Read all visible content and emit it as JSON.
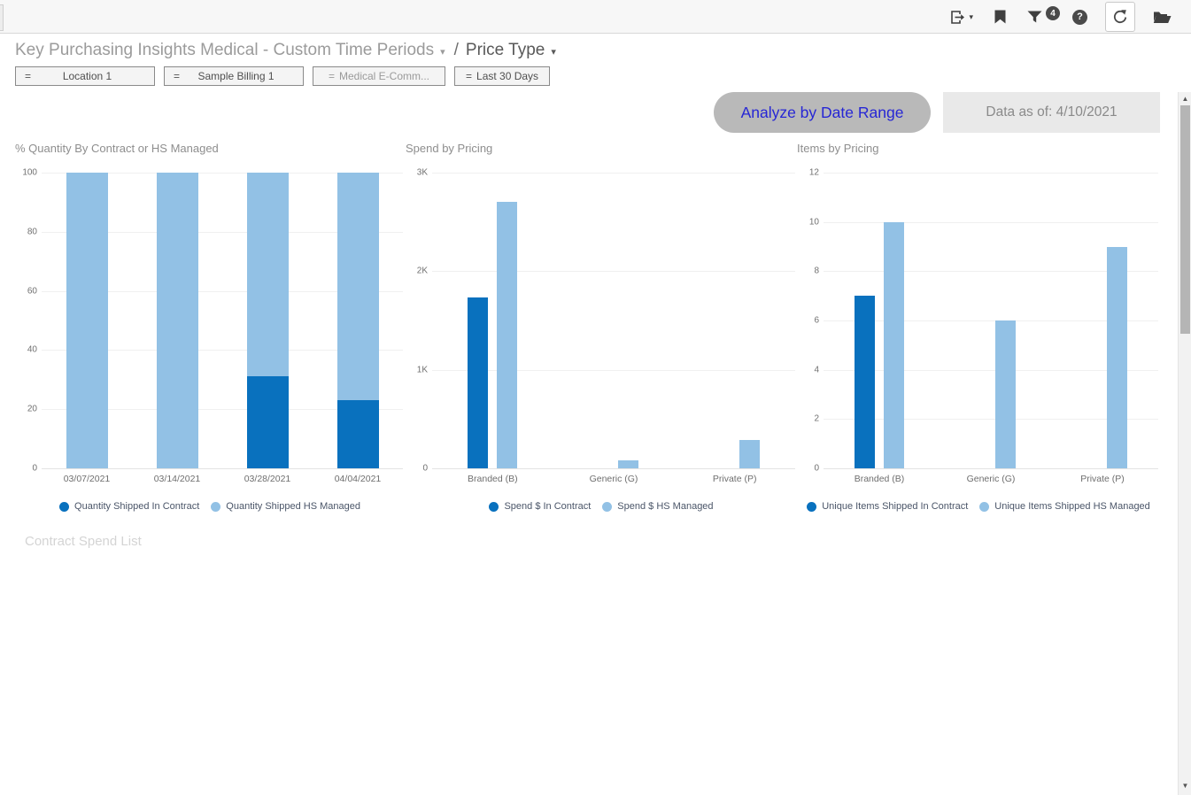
{
  "toolbar": {
    "filter_badge_count": "4",
    "icons": [
      "export",
      "bookmark",
      "filter",
      "help",
      "refresh",
      "folder"
    ]
  },
  "header": {
    "title": "Key Purchasing Insights Medical - Custom Time Periods",
    "separator": "/",
    "subtitle": "Price Type"
  },
  "filters": [
    {
      "operator": "=",
      "label": "Location 1"
    },
    {
      "operator": "=",
      "label": "Sample Billing 1"
    },
    {
      "operator": "=",
      "label": "Medical E-Comm..."
    },
    {
      "operator": "=",
      "label": "Last 30 Days"
    }
  ],
  "actions": {
    "analyze_button_label": "Analyze by Date Range",
    "data_as_of_label": "Data as of: 4/10/2021"
  },
  "sections": {
    "contract_spend_list_title": "Contract Spend List"
  },
  "colors": {
    "series_in_contract": "#0971BE",
    "series_hs_managed": "#92C1E5",
    "accent_blue": "#2626D5"
  },
  "chart_data": [
    {
      "type": "bar",
      "stacked": true,
      "title": "% Quantity By Contract or HS Managed",
      "categories": [
        "03/07/2021",
        "03/14/2021",
        "03/28/2021",
        "04/04/2021"
      ],
      "series": [
        {
          "name": "Quantity Shipped In Contract",
          "color": "#0971BE",
          "values": [
            0,
            0,
            31,
            23
          ]
        },
        {
          "name": "Quantity Shipped HS Managed",
          "color": "#92C1E5",
          "values": [
            100,
            100,
            69,
            77
          ]
        }
      ],
      "ylim": [
        0,
        100
      ],
      "yticks": [
        0,
        20,
        40,
        60,
        80,
        100
      ],
      "ytick_labels": [
        "0",
        "20",
        "40",
        "60",
        "80",
        "100"
      ],
      "grid": true,
      "legend_position": "bottom"
    },
    {
      "type": "bar",
      "stacked": false,
      "title": "Spend by Pricing",
      "categories": [
        "Branded (B)",
        "Generic (G)",
        "Private (P)"
      ],
      "series": [
        {
          "name": "Spend $ In Contract",
          "color": "#0971BE",
          "values": [
            1730,
            0,
            0
          ]
        },
        {
          "name": "Spend $ HS Managed",
          "color": "#92C1E5",
          "values": [
            2700,
            80,
            290
          ]
        }
      ],
      "ylim": [
        0,
        3000
      ],
      "yticks": [
        0,
        1000,
        2000,
        3000
      ],
      "ytick_labels": [
        "0",
        "1K",
        "2K",
        "3K"
      ],
      "grid": true,
      "legend_position": "bottom"
    },
    {
      "type": "bar",
      "stacked": false,
      "title": "Items by Pricing",
      "categories": [
        "Branded (B)",
        "Generic (G)",
        "Private (P)"
      ],
      "series": [
        {
          "name": "Unique Items Shipped In Contract",
          "color": "#0971BE",
          "values": [
            7,
            0,
            0
          ]
        },
        {
          "name": "Unique Items Shipped HS Managed",
          "color": "#92C1E5",
          "values": [
            10,
            6,
            9
          ]
        }
      ],
      "ylim": [
        0,
        12
      ],
      "yticks": [
        0,
        2,
        4,
        6,
        8,
        10,
        12
      ],
      "ytick_labels": [
        "0",
        "2",
        "4",
        "6",
        "8",
        "10",
        "12"
      ],
      "grid": true,
      "legend_position": "bottom"
    }
  ]
}
